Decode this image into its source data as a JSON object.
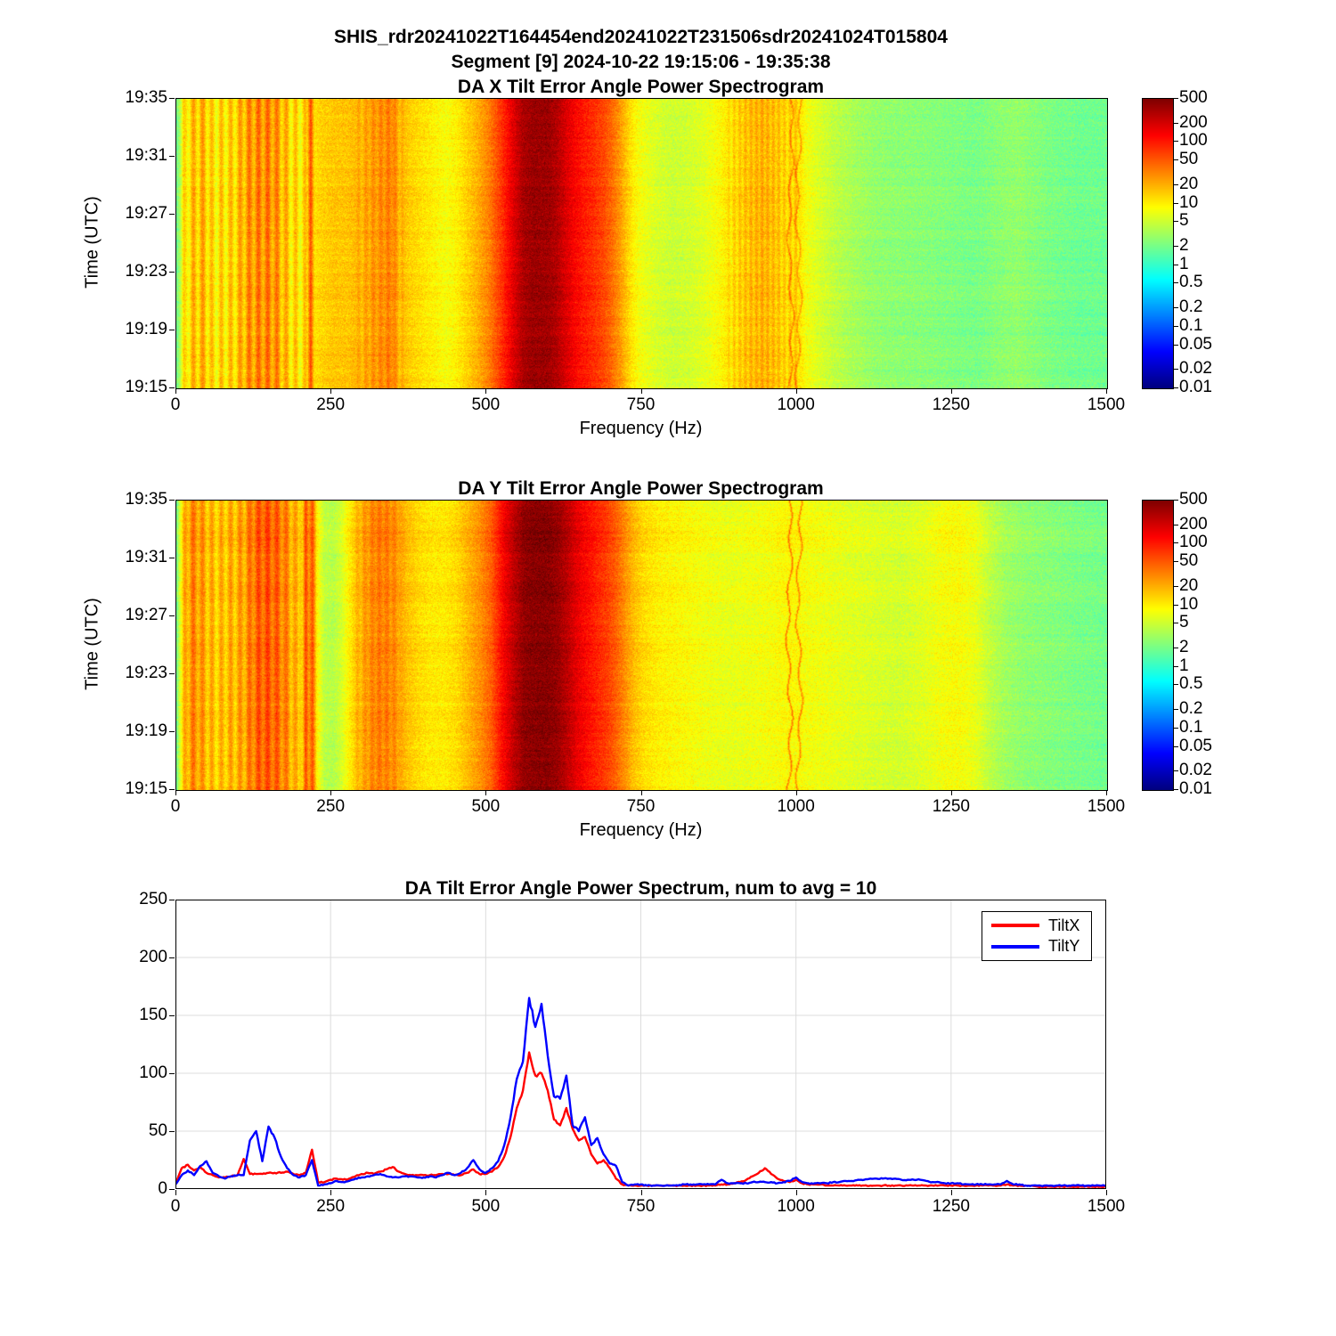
{
  "header": {
    "title": "SHIS_rdr20241022T164454end20241022T231506sdr20241024T015804",
    "subtitle": "Segment [9] 2024-10-22 19:15:06 - 19:35:38"
  },
  "colors": {
    "tiltx": "#FF0000",
    "tilty": "#0000FF",
    "grid": "#DCDCDC",
    "axis": "#000000",
    "background": "#FFFFFF"
  },
  "chart_data": [
    {
      "id": "spectrogram_x",
      "type": "heatmap",
      "title": "DA X Tilt Error Angle Power Spectrogram",
      "xlabel": "Frequency (Hz)",
      "ylabel": "Time (UTC)",
      "xlim": [
        0,
        1500
      ],
      "xticks": [
        0,
        250,
        500,
        750,
        1000,
        1250,
        1500
      ],
      "ytick_labels": [
        "19:35",
        "19:31",
        "19:27",
        "19:23",
        "19:19",
        "19:15"
      ],
      "colormap": "jet",
      "colorbar_scale": "log",
      "colorbar_range": [
        0.01,
        500
      ],
      "colorbar_tick_labels": [
        "500",
        "200",
        "100",
        "50",
        "20",
        "10",
        "5",
        "2",
        "1",
        "0.5",
        "0.2",
        "0.1",
        "0.05",
        "0.02",
        "0.01"
      ],
      "freq_power_profile": [
        [
          0,
          2
        ],
        [
          4,
          3
        ],
        [
          10,
          8
        ],
        [
          18,
          13
        ],
        [
          30,
          16
        ],
        [
          45,
          18
        ],
        [
          58,
          11
        ],
        [
          72,
          12
        ],
        [
          88,
          13
        ],
        [
          102,
          17
        ],
        [
          112,
          24
        ],
        [
          125,
          28
        ],
        [
          140,
          31
        ],
        [
          155,
          29
        ],
        [
          168,
          21
        ],
        [
          180,
          14
        ],
        [
          195,
          11
        ],
        [
          210,
          12
        ],
        [
          216,
          65
        ],
        [
          222,
          12
        ],
        [
          235,
          14
        ],
        [
          255,
          16
        ],
        [
          275,
          16
        ],
        [
          295,
          19
        ],
        [
          315,
          25
        ],
        [
          335,
          30
        ],
        [
          348,
          33
        ],
        [
          360,
          19
        ],
        [
          378,
          14
        ],
        [
          395,
          12
        ],
        [
          415,
          10
        ],
        [
          435,
          8
        ],
        [
          452,
          10
        ],
        [
          468,
          14
        ],
        [
          485,
          20
        ],
        [
          505,
          35
        ],
        [
          525,
          80
        ],
        [
          542,
          170
        ],
        [
          558,
          310
        ],
        [
          575,
          380
        ],
        [
          598,
          365
        ],
        [
          614,
          290
        ],
        [
          628,
          190
        ],
        [
          642,
          135
        ],
        [
          658,
          100
        ],
        [
          672,
          82
        ],
        [
          688,
          62
        ],
        [
          702,
          42
        ],
        [
          716,
          25
        ],
        [
          730,
          13
        ],
        [
          745,
          8
        ],
        [
          770,
          6
        ],
        [
          800,
          5
        ],
        [
          828,
          5.5
        ],
        [
          852,
          6.5
        ],
        [
          876,
          9
        ],
        [
          900,
          13
        ],
        [
          922,
          17
        ],
        [
          945,
          20
        ],
        [
          965,
          17
        ],
        [
          985,
          13
        ],
        [
          1000,
          14
        ],
        [
          1015,
          8
        ],
        [
          1035,
          6
        ],
        [
          1060,
          4.5
        ],
        [
          1090,
          3.5
        ],
        [
          1125,
          2.8
        ],
        [
          1160,
          2.6
        ],
        [
          1200,
          2.5
        ],
        [
          1245,
          2.3
        ],
        [
          1290,
          2.1
        ],
        [
          1325,
          2.5
        ],
        [
          1355,
          2.8
        ],
        [
          1385,
          2.4
        ],
        [
          1415,
          2.1
        ],
        [
          1455,
          1.9
        ],
        [
          1500,
          1.9
        ]
      ],
      "comb_stripes": [
        {
          "from": 8,
          "to": 212,
          "period": 15,
          "amp": 0.22
        },
        {
          "from": 290,
          "to": 365,
          "period": 12,
          "amp": 0.09
        },
        {
          "from": 888,
          "to": 1005,
          "period": 9,
          "amp": 0.1
        }
      ],
      "spectral_lines": [
        {
          "f": 990,
          "amp": 0.4,
          "wavy": true
        },
        {
          "f": 1003,
          "amp": 0.35,
          "wavy": true
        }
      ],
      "noise_sigma": 0.15,
      "seed": 11
    },
    {
      "id": "spectrogram_y",
      "type": "heatmap",
      "title": "DA Y Tilt Error Angle Power Spectrogram",
      "xlabel": "Frequency (Hz)",
      "ylabel": "Time (UTC)",
      "xlim": [
        0,
        1500
      ],
      "xticks": [
        0,
        250,
        500,
        750,
        1000,
        1250,
        1500
      ],
      "ytick_labels": [
        "19:35",
        "19:31",
        "19:27",
        "19:23",
        "19:19",
        "19:15"
      ],
      "colormap": "jet",
      "colorbar_scale": "log",
      "colorbar_range": [
        0.01,
        500
      ],
      "colorbar_tick_labels": [
        "500",
        "200",
        "100",
        "50",
        "20",
        "10",
        "5",
        "2",
        "1",
        "0.5",
        "0.2",
        "0.1",
        "0.05",
        "0.02",
        "0.01"
      ],
      "freq_power_profile": [
        [
          0,
          2
        ],
        [
          5,
          6
        ],
        [
          14,
          20
        ],
        [
          24,
          30
        ],
        [
          38,
          25
        ],
        [
          52,
          18
        ],
        [
          66,
          16
        ],
        [
          82,
          18
        ],
        [
          98,
          20
        ],
        [
          112,
          26
        ],
        [
          126,
          42
        ],
        [
          140,
          52
        ],
        [
          155,
          48
        ],
        [
          170,
          36
        ],
        [
          183,
          24
        ],
        [
          195,
          16
        ],
        [
          203,
          14
        ],
        [
          208,
          70
        ],
        [
          213,
          24
        ],
        [
          219,
          62
        ],
        [
          226,
          10
        ],
        [
          238,
          4.5
        ],
        [
          252,
          4
        ],
        [
          265,
          5.5
        ],
        [
          278,
          10
        ],
        [
          292,
          18
        ],
        [
          308,
          27
        ],
        [
          324,
          35
        ],
        [
          340,
          33
        ],
        [
          356,
          27
        ],
        [
          372,
          17
        ],
        [
          390,
          13
        ],
        [
          410,
          11
        ],
        [
          432,
          11
        ],
        [
          452,
          13
        ],
        [
          470,
          19
        ],
        [
          490,
          29
        ],
        [
          508,
          50
        ],
        [
          526,
          130
        ],
        [
          544,
          260
        ],
        [
          560,
          420
        ],
        [
          580,
          470
        ],
        [
          600,
          455
        ],
        [
          615,
          385
        ],
        [
          630,
          270
        ],
        [
          645,
          175
        ],
        [
          660,
          125
        ],
        [
          676,
          95
        ],
        [
          692,
          72
        ],
        [
          706,
          52
        ],
        [
          720,
          32
        ],
        [
          735,
          19
        ],
        [
          752,
          13
        ],
        [
          775,
          10.5
        ],
        [
          800,
          9.5
        ],
        [
          830,
          8.5
        ],
        [
          862,
          7.5
        ],
        [
          895,
          7
        ],
        [
          925,
          7.5
        ],
        [
          955,
          8
        ],
        [
          978,
          9
        ],
        [
          1000,
          9
        ],
        [
          1020,
          8
        ],
        [
          1048,
          7.5
        ],
        [
          1085,
          6.5
        ],
        [
          1125,
          6
        ],
        [
          1165,
          5.5
        ],
        [
          1205,
          6.5
        ],
        [
          1235,
          8
        ],
        [
          1262,
          8.5
        ],
        [
          1288,
          7
        ],
        [
          1312,
          4.5
        ],
        [
          1338,
          3.2
        ],
        [
          1368,
          2.7
        ],
        [
          1400,
          2.5
        ],
        [
          1445,
          2.2
        ],
        [
          1500,
          2
        ]
      ],
      "comb_stripes": [
        {
          "from": 8,
          "to": 198,
          "period": 15,
          "amp": 0.18
        },
        {
          "from": 288,
          "to": 360,
          "period": 12,
          "amp": 0.08
        }
      ],
      "spectral_lines": [
        {
          "f": 988,
          "amp": 0.6,
          "wavy": true
        },
        {
          "f": 1004,
          "amp": 0.55,
          "wavy": true
        }
      ],
      "noise_sigma": 0.15,
      "seed": 23
    },
    {
      "id": "power_spectrum",
      "type": "line",
      "title": "DA Tilt Error Angle Power Spectrum, num to avg = 10",
      "xlim": [
        0,
        1500
      ],
      "ylim": [
        0,
        250
      ],
      "xticks": [
        0,
        250,
        500,
        750,
        1000,
        1250,
        1500
      ],
      "yticks": [
        0,
        50,
        100,
        150,
        200,
        250
      ],
      "grid": true,
      "legend_position": "top-right",
      "x_start": 0,
      "x_step": 10,
      "series": [
        {
          "name": "TiltX",
          "color": "#FF0000",
          "values": [
            4,
            18,
            21,
            16,
            19,
            14,
            12,
            10,
            10,
            11,
            12,
            26,
            13,
            13,
            13,
            14,
            14,
            14,
            15,
            13,
            12,
            14,
            34,
            6,
            6,
            8,
            9,
            8,
            9,
            11,
            13,
            14,
            13,
            15,
            17,
            19,
            15,
            13,
            12,
            12,
            12,
            12,
            12,
            13,
            13,
            12,
            12,
            14,
            17,
            13,
            13,
            15,
            19,
            28,
            45,
            70,
            85,
            118,
            98,
            100,
            85,
            60,
            55,
            70,
            52,
            42,
            45,
            30,
            22,
            25,
            18,
            9,
            4,
            3,
            3,
            3,
            3,
            3,
            3,
            3,
            3,
            3,
            3,
            3,
            3,
            3,
            3,
            3,
            4,
            4,
            5,
            6,
            8,
            11,
            14,
            18,
            13,
            9,
            7,
            6,
            8,
            5,
            4,
            4,
            4,
            3,
            3,
            3,
            3,
            3,
            3,
            3,
            3,
            3,
            3,
            3,
            3,
            3,
            3,
            3,
            3,
            3,
            3,
            3,
            3,
            3,
            3,
            3,
            3,
            3,
            3,
            3,
            3,
            3,
            4,
            3,
            3,
            3,
            3,
            2,
            2,
            2,
            2,
            2,
            2,
            2,
            2,
            2,
            2,
            2,
            2
          ]
        },
        {
          "name": "TiltY",
          "color": "#0000FF",
          "values": [
            4,
            12,
            16,
            12,
            20,
            24,
            14,
            11,
            9,
            11,
            12,
            12,
            42,
            50,
            24,
            54,
            44,
            28,
            18,
            12,
            10,
            12,
            25,
            3,
            4,
            5,
            7,
            6,
            7,
            9,
            10,
            11,
            12,
            13,
            11,
            10,
            10,
            11,
            11,
            10,
            10,
            11,
            10,
            12,
            14,
            12,
            14,
            18,
            25,
            17,
            14,
            18,
            24,
            38,
            62,
            95,
            110,
            165,
            140,
            160,
            115,
            80,
            78,
            98,
            55,
            50,
            62,
            38,
            44,
            30,
            22,
            20,
            6,
            3,
            4,
            4,
            3,
            3,
            3,
            3,
            3,
            3,
            4,
            4,
            4,
            4,
            4,
            4,
            8,
            5,
            5,
            5,
            5,
            6,
            6,
            6,
            6,
            5,
            6,
            7,
            10,
            6,
            5,
            5,
            5,
            5,
            6,
            6,
            7,
            7,
            8,
            8,
            9,
            9,
            9,
            9,
            9,
            8,
            8,
            8,
            8,
            7,
            6,
            6,
            5,
            5,
            5,
            4,
            4,
            4,
            4,
            4,
            4,
            4,
            7,
            4,
            4,
            3,
            3,
            3,
            3,
            3,
            3,
            3,
            3,
            3,
            3,
            3,
            3,
            3,
            3
          ]
        }
      ]
    }
  ]
}
